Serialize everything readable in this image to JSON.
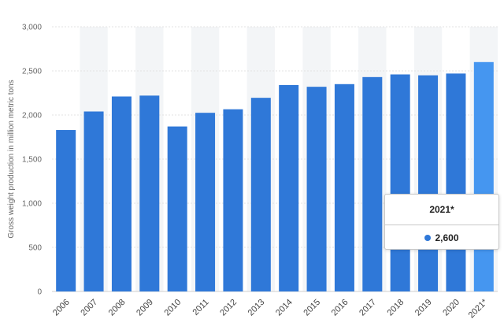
{
  "colors": {
    "bar": "#2f78d8",
    "bar_highlight": "#4596f0",
    "band": "#f3f5f7",
    "grid": "#e3e3e3"
  },
  "chart_data": {
    "type": "bar",
    "title": "",
    "xlabel": "",
    "ylabel": "Gross weight production in million metric tons",
    "ylim": [
      0,
      3000
    ],
    "yticks": [
      0,
      500,
      1000,
      1500,
      2000,
      2500,
      3000
    ],
    "ytick_labels": [
      "0",
      "500",
      "1,000",
      "1,500",
      "2,000",
      "2,500",
      "3,000"
    ],
    "categories": [
      "2006",
      "2007",
      "2008",
      "2009",
      "2010",
      "2011",
      "2012",
      "2013",
      "2014",
      "2015",
      "2016",
      "2017",
      "2018",
      "2019",
      "2020",
      "2021*"
    ],
    "values": [
      1830,
      2040,
      2210,
      2220,
      1870,
      2025,
      2065,
      2195,
      2340,
      2320,
      2350,
      2430,
      2460,
      2450,
      2470,
      2600
    ],
    "highlight_index": 15,
    "grid": true
  },
  "tooltip": {
    "label": "2021*",
    "value": "2,600"
  }
}
